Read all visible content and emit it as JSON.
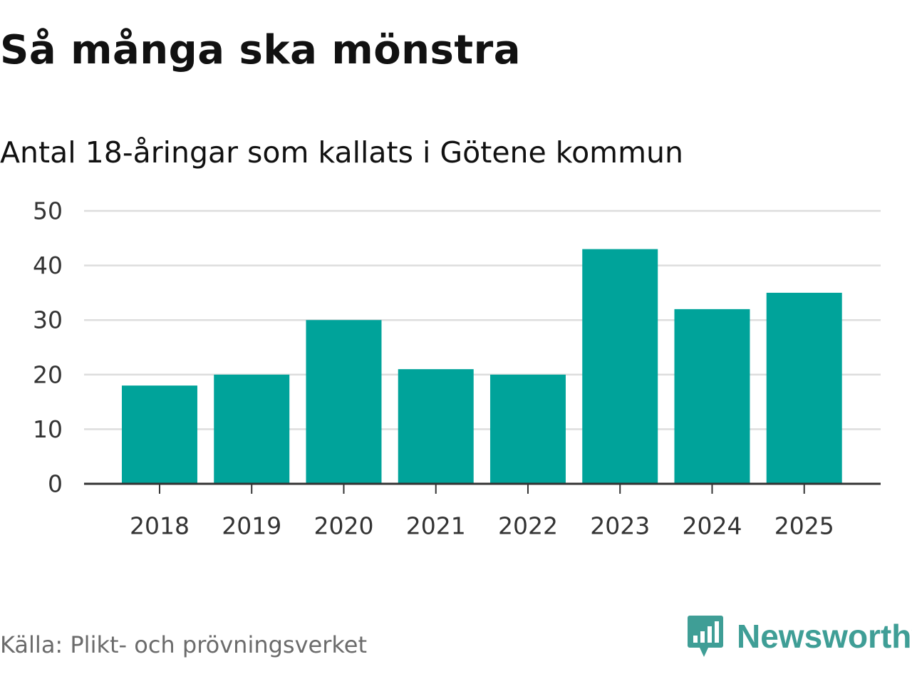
{
  "header": {
    "title": "Så många ska mönstra",
    "subtitle": "Antal 18-åringar som kallats i Götene kommun"
  },
  "footer": {
    "source": "Källa: Plikt- och prövningsverket",
    "brand": "Newsworthy",
    "brand_icon": "bar-chart-speech-bubble-icon"
  },
  "colors": {
    "bar": "#00a39a",
    "grid": "#dddddd",
    "axis": "#333333",
    "brand": "#3f9e96"
  },
  "chart_data": {
    "type": "bar",
    "title": "Så många ska mönstra",
    "subtitle": "Antal 18-åringar som kallats i Götene kommun",
    "categories": [
      "2018",
      "2019",
      "2020",
      "2021",
      "2022",
      "2023",
      "2024",
      "2025"
    ],
    "values": [
      18,
      20,
      30,
      21,
      20,
      43,
      32,
      35
    ],
    "xlabel": "",
    "ylabel": "",
    "ylim": [
      0,
      50
    ],
    "yticks": [
      0,
      10,
      20,
      30,
      40,
      50
    ],
    "grid": true,
    "legend": "none"
  }
}
